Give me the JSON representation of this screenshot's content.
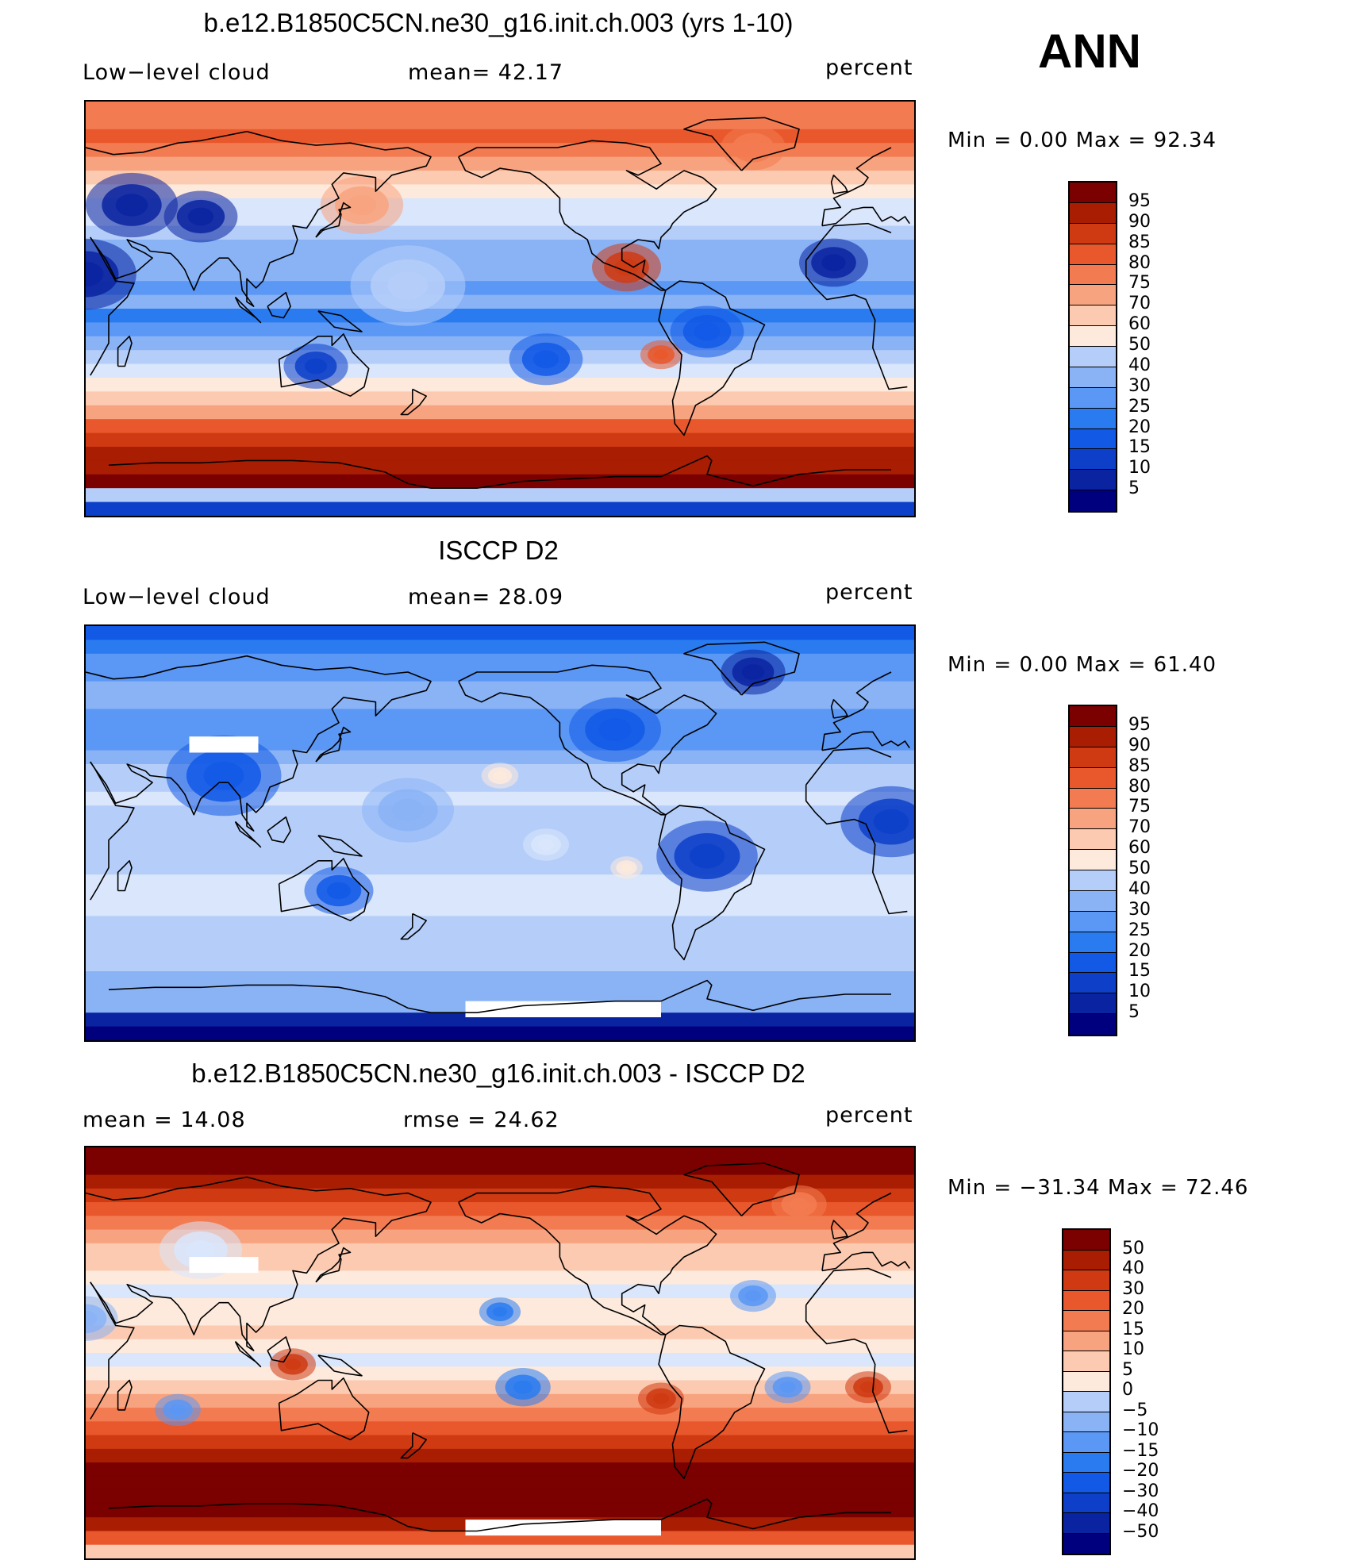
{
  "season": "ANN",
  "colors": {
    "seq": [
      "#00007f",
      "#0a23a0",
      "#0d3fc9",
      "#1259e6",
      "#2a7bf0",
      "#5b97f4",
      "#8ab3f6",
      "#b5cef9",
      "#d9e6fb",
      "#fdeadd",
      "#fccab0",
      "#f8a37f",
      "#f37b51",
      "#e9582c",
      "#cf3a12",
      "#a91d03",
      "#7b0000"
    ],
    "land_outline": "#000000"
  },
  "panels": [
    {
      "title": "b.e12.B1850C5CN.ne30_g16.init.ch.003 (yrs 1-10)",
      "left_label": "Low−level cloud",
      "center_label": "mean=   42.17",
      "units": "percent",
      "minmax": "Min  =      0.00  Max  =    92.34",
      "colorbar_labels": [
        "95",
        "90",
        "85",
        "80",
        "75",
        "70",
        "60",
        "50",
        "40",
        "30",
        "25",
        "20",
        "15",
        "10",
        "5"
      ],
      "bands": [
        12,
        12,
        13,
        12,
        11,
        10,
        9,
        8,
        8,
        7,
        6,
        6,
        6,
        5,
        6,
        4,
        5,
        6,
        7,
        8,
        9,
        10,
        11,
        13,
        14,
        15,
        15,
        16,
        7,
        2
      ],
      "features": [
        {
          "lon": -95,
          "lat": 18,
          "r": 15,
          "c": 14
        },
        {
          "lon": -80,
          "lat": -20,
          "r": 9,
          "c": 13
        },
        {
          "lon": -130,
          "lat": -22,
          "r": 16,
          "c": 3
        },
        {
          "lon": 50,
          "lat": 45,
          "r": 20,
          "c": 1
        },
        {
          "lon": 80,
          "lat": 40,
          "r": 16,
          "c": 1
        },
        {
          "lon": 30,
          "lat": 15,
          "r": 22,
          "c": 1
        },
        {
          "lon": 130,
          "lat": -25,
          "r": 14,
          "c": 2
        },
        {
          "lon": -60,
          "lat": -10,
          "r": 16,
          "c": 3
        },
        {
          "lon": 150,
          "lat": 45,
          "r": 18,
          "c": 11
        },
        {
          "lon": -40,
          "lat": 70,
          "r": 14,
          "c": 12
        },
        {
          "lon": 170,
          "lat": 10,
          "r": 25,
          "c": 7
        },
        {
          "lon": -5,
          "lat": 20,
          "r": 15,
          "c": 1
        }
      ]
    },
    {
      "title": "ISCCP D2",
      "left_label": "Low−level cloud",
      "center_label": "mean=   28.09",
      "units": "percent",
      "minmax": "Min  =      0.00  Max  =    61.40",
      "colorbar_labels": [
        "95",
        "90",
        "85",
        "80",
        "75",
        "70",
        "60",
        "50",
        "40",
        "30",
        "25",
        "20",
        "15",
        "10",
        "5"
      ],
      "bands": [
        3,
        4,
        5,
        5,
        6,
        6,
        5,
        5,
        5,
        6,
        7,
        7,
        8,
        7,
        7,
        7,
        7,
        7,
        8,
        8,
        8,
        7,
        7,
        7,
        7,
        6,
        6,
        6,
        1,
        0
      ],
      "features": [
        {
          "lon": -60,
          "lat": -10,
          "r": 22,
          "c": 2
        },
        {
          "lon": 20,
          "lat": 5,
          "r": 22,
          "c": 2
        },
        {
          "lon": 90,
          "lat": 25,
          "r": 25,
          "c": 3
        },
        {
          "lon": 140,
          "lat": -25,
          "r": 15,
          "c": 3
        },
        {
          "lon": -40,
          "lat": 70,
          "r": 14,
          "c": 1
        },
        {
          "lon": -100,
          "lat": 45,
          "r": 20,
          "c": 3
        },
        {
          "lon": -150,
          "lat": 25,
          "r": 8,
          "c": 9
        },
        {
          "lon": -95,
          "lat": -15,
          "r": 7,
          "c": 9
        },
        {
          "lon": -130,
          "lat": -5,
          "r": 10,
          "c": 8
        },
        {
          "lon": 170,
          "lat": 10,
          "r": 20,
          "c": 6
        }
      ],
      "missing": [
        {
          "lon0": 75,
          "lon1": 105,
          "lat0": 35,
          "lat1": 42
        },
        {
          "lon0": -165,
          "lon1": -80,
          "lat0": -80,
          "lat1": -73
        }
      ]
    },
    {
      "title": "b.e12.B1850C5CN.ne30_g16.init.ch.003 - ISCCP D2",
      "left_label": "mean  =    14.08",
      "center_label": "rmse  =    24.62",
      "units": "percent",
      "minmax": "Min  = −31.34  Max  =    72.46",
      "colorbar_labels": [
        "50",
        "40",
        "30",
        "20",
        "15",
        "10",
        "5",
        "0",
        "−5",
        "−10",
        "−15",
        "−20",
        "−30",
        "−40",
        "−50"
      ],
      "bands": [
        16,
        16,
        15,
        14,
        13,
        12,
        11,
        10,
        10,
        9,
        8,
        9,
        9,
        10,
        9,
        8,
        9,
        10,
        11,
        12,
        13,
        14,
        15,
        16,
        16,
        16,
        16,
        15,
        13,
        10
      ],
      "features": [
        {
          "lon": -150,
          "lat": 18,
          "r": 9,
          "c": 4
        },
        {
          "lon": -140,
          "lat": -15,
          "r": 12,
          "c": 4
        },
        {
          "lon": -80,
          "lat": -20,
          "r": 10,
          "c": 14
        },
        {
          "lon": 10,
          "lat": -15,
          "r": 10,
          "c": 14
        },
        {
          "lon": 120,
          "lat": -5,
          "r": 10,
          "c": 14
        },
        {
          "lon": 70,
          "lat": -25,
          "r": 10,
          "c": 5
        },
        {
          "lon": -25,
          "lat": -15,
          "r": 10,
          "c": 5
        },
        {
          "lon": -40,
          "lat": 25,
          "r": 10,
          "c": 5
        },
        {
          "lon": -20,
          "lat": 65,
          "r": 12,
          "c": 12
        },
        {
          "lon": 80,
          "lat": 45,
          "r": 18,
          "c": 8
        },
        {
          "lon": 30,
          "lat": 15,
          "r": 14,
          "c": 6
        }
      ],
      "missing": [
        {
          "lon0": 75,
          "lon1": 105,
          "lat0": 35,
          "lat1": 42
        },
        {
          "lon0": -165,
          "lon1": -80,
          "lat0": -80,
          "lat1": -73
        }
      ]
    }
  ]
}
